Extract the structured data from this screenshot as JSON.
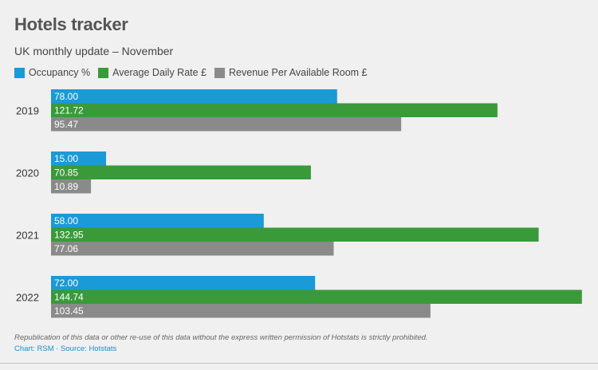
{
  "chart_data": {
    "type": "bar",
    "orientation": "horizontal",
    "title": "Hotels tracker",
    "subtitle": "UK monthly update – November",
    "categories": [
      "2019",
      "2020",
      "2021",
      "2022"
    ],
    "series": [
      {
        "name": "Occupancy %",
        "color": "#1a9ad6",
        "values": [
          78.0,
          15.0,
          58.0,
          72.0
        ]
      },
      {
        "name": "Average Daily Rate £",
        "color": "#3a9a3a",
        "values": [
          121.72,
          70.85,
          132.95,
          144.74
        ]
      },
      {
        "name": "Revenue Per Available Room £",
        "color": "#8a8a8a",
        "values": [
          95.47,
          10.89,
          77.06,
          103.45
        ]
      }
    ],
    "value_labels": [
      [
        "78.00",
        "121.72",
        "95.47"
      ],
      [
        "15.00",
        "70.85",
        "10.89"
      ],
      [
        "58.00",
        "132.95",
        "77.06"
      ],
      [
        "72.00",
        "144.74",
        "103.45"
      ]
    ],
    "xlim": [
      0,
      145
    ],
    "grid": false,
    "legend": "top-left"
  },
  "footer": {
    "note": "Republication of this data or other re-use of this data without the express written permission of Hotstats is strictly prohibited.",
    "credits": "Chart: RSM · Source: Hotstats"
  }
}
